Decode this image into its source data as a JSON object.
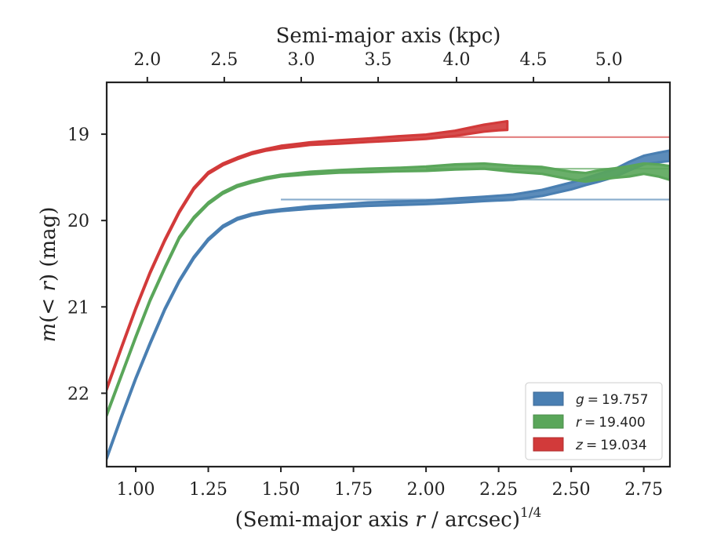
{
  "chart_data": {
    "type": "line",
    "title": "",
    "xlabel_prefix": "(Semi-major axis ",
    "xlabel_var": "r",
    "xlabel_suffix": " / arcsec)",
    "xlabel_sup": "1/4",
    "ylabel_var1": "m",
    "ylabel_mid": "(< ",
    "ylabel_var2": "r",
    "ylabel_suffix": ") (mag)",
    "top_xlabel": "Semi-major axis (kpc)",
    "xlim": [
      0.9,
      2.84
    ],
    "ylim": [
      22.85,
      18.4
    ],
    "x_ticks": [
      1.0,
      1.25,
      1.5,
      1.75,
      2.0,
      2.25,
      2.5,
      2.75
    ],
    "x_tick_labels": [
      "1.00",
      "1.25",
      "1.50",
      "1.75",
      "2.00",
      "2.25",
      "2.50",
      "2.75"
    ],
    "y_ticks": [
      19,
      20,
      21,
      22
    ],
    "y_tick_labels": [
      "19",
      "20",
      "21",
      "22"
    ],
    "top_ticks_at_bottom_x": [
      1.04,
      1.305,
      1.57,
      1.835,
      2.105,
      2.37,
      2.63
    ],
    "top_tick_labels": [
      "2.0",
      "2.5",
      "3.0",
      "3.5",
      "4.0",
      "4.5",
      "5.0"
    ],
    "legend_position": "lower-right",
    "series": [
      {
        "name": "g = 19.757",
        "legend_var": "g",
        "legend_value": "19.757",
        "color": "#4a7fb2",
        "asymptote": 19.757,
        "asymptote_start_x": 1.5,
        "x": [
          0.9,
          0.95,
          1.0,
          1.05,
          1.1,
          1.15,
          1.2,
          1.25,
          1.3,
          1.35,
          1.4,
          1.45,
          1.5,
          1.6,
          1.7,
          1.8,
          1.9,
          2.0,
          2.1,
          2.2,
          2.3,
          2.4,
          2.5,
          2.55,
          2.6,
          2.65,
          2.7,
          2.75,
          2.8,
          2.84
        ],
        "y": [
          22.75,
          22.28,
          21.83,
          21.42,
          21.03,
          20.7,
          20.43,
          20.22,
          20.07,
          19.98,
          19.93,
          19.9,
          19.88,
          19.85,
          19.83,
          19.81,
          19.8,
          19.79,
          19.77,
          19.75,
          19.73,
          19.68,
          19.6,
          19.55,
          19.5,
          19.45,
          19.37,
          19.3,
          19.27,
          19.25
        ],
        "band": [
          0.01,
          0.01,
          0.01,
          0.01,
          0.01,
          0.01,
          0.01,
          0.01,
          0.01,
          0.01,
          0.01,
          0.01,
          0.01,
          0.015,
          0.015,
          0.02,
          0.02,
          0.02,
          0.025,
          0.025,
          0.03,
          0.035,
          0.04,
          0.04,
          0.045,
          0.045,
          0.05,
          0.05,
          0.055,
          0.06
        ]
      },
      {
        "name": "r = 19.400",
        "legend_var": "r",
        "legend_value": "19.400",
        "color": "#5aa65a",
        "asymptote": 19.4,
        "asymptote_start_x": 2.0,
        "x": [
          0.9,
          0.95,
          1.0,
          1.05,
          1.1,
          1.15,
          1.2,
          1.25,
          1.3,
          1.35,
          1.4,
          1.45,
          1.5,
          1.6,
          1.7,
          1.8,
          1.9,
          2.0,
          2.1,
          2.2,
          2.3,
          2.4,
          2.5,
          2.55,
          2.6,
          2.65,
          2.7,
          2.75,
          2.8,
          2.84
        ],
        "y": [
          22.25,
          21.8,
          21.35,
          20.92,
          20.55,
          20.2,
          19.97,
          19.8,
          19.68,
          19.6,
          19.55,
          19.51,
          19.48,
          19.45,
          19.43,
          19.42,
          19.41,
          19.4,
          19.38,
          19.37,
          19.4,
          19.42,
          19.48,
          19.5,
          19.47,
          19.45,
          19.43,
          19.4,
          19.42,
          19.45
        ],
        "band": [
          0.01,
          0.01,
          0.01,
          0.01,
          0.01,
          0.01,
          0.01,
          0.01,
          0.01,
          0.01,
          0.01,
          0.01,
          0.01,
          0.015,
          0.015,
          0.02,
          0.02,
          0.025,
          0.03,
          0.03,
          0.035,
          0.04,
          0.045,
          0.05,
          0.055,
          0.055,
          0.06,
          0.06,
          0.07,
          0.08
        ]
      },
      {
        "name": "z = 19.034",
        "legend_var": "z",
        "legend_value": "19.034",
        "color": "#d23a3a",
        "asymptote": 19.034,
        "asymptote_start_x": 2.05,
        "x": [
          0.9,
          0.95,
          1.0,
          1.05,
          1.1,
          1.15,
          1.2,
          1.25,
          1.3,
          1.35,
          1.4,
          1.45,
          1.5,
          1.6,
          1.7,
          1.8,
          1.9,
          2.0,
          2.1,
          2.15,
          2.2,
          2.25,
          2.28
        ],
        "y": [
          21.95,
          21.48,
          21.02,
          20.6,
          20.23,
          19.9,
          19.63,
          19.45,
          19.35,
          19.28,
          19.22,
          19.18,
          19.15,
          19.11,
          19.09,
          19.07,
          19.05,
          19.03,
          18.99,
          18.96,
          18.93,
          18.91,
          18.9
        ],
        "band": [
          0.01,
          0.01,
          0.01,
          0.01,
          0.01,
          0.01,
          0.01,
          0.01,
          0.01,
          0.01,
          0.01,
          0.01,
          0.015,
          0.015,
          0.02,
          0.02,
          0.025,
          0.025,
          0.03,
          0.035,
          0.04,
          0.045,
          0.05
        ]
      }
    ]
  }
}
